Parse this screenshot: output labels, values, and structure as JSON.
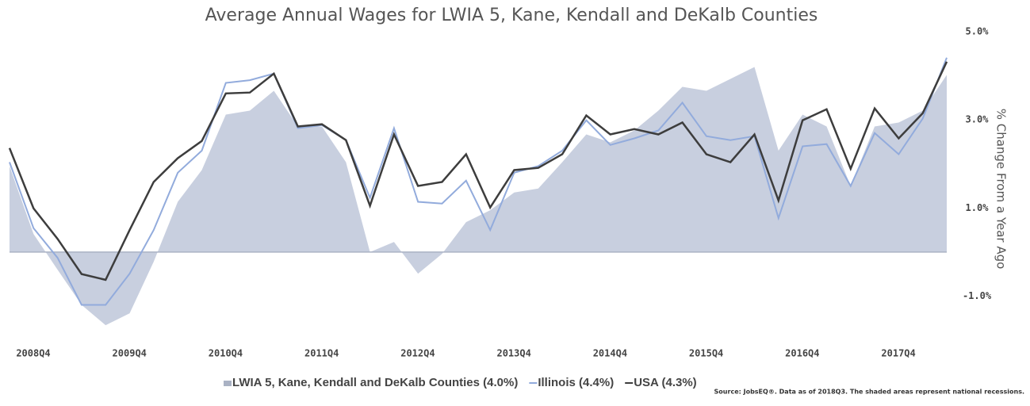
{
  "chart_data": {
    "type": "line",
    "title": "Average Annual Wages for LWIA 5, Kane, Kendall and DeKalb Counties",
    "y_label": "% Change From a Year Ago",
    "source": "Source: JobsEQ®. Data as of 2018Q3. The shaded areas represent national recessions.",
    "categories": [
      "2008Q4",
      null,
      null,
      null,
      "2009Q4",
      null,
      null,
      null,
      "2010Q4",
      null,
      null,
      null,
      "2011Q4",
      null,
      null,
      null,
      "2012Q4",
      null,
      null,
      null,
      "2013Q4",
      null,
      null,
      null,
      "2014Q4",
      null,
      null,
      null,
      "2015Q4",
      null,
      null,
      null,
      "2016Q4",
      null,
      null,
      null,
      "2017Q4",
      null,
      null,
      null
    ],
    "ylim": [
      -2,
      5
    ],
    "yticks": [
      {
        "value": 5,
        "label": "5.0%"
      },
      {
        "value": 3,
        "label": "3.0%"
      },
      {
        "value": 1,
        "label": "1.0%"
      },
      {
        "value": -1,
        "label": "-1.0%"
      }
    ],
    "series": [
      {
        "name": "LWIA 5, Kane, Kendall and DeKalb Counties (4.0%)",
        "kind": "area",
        "color": "#c8cfdf",
        "values": [
          1.95,
          0.41,
          -0.4,
          -1.2,
          -1.66,
          -1.39,
          -0.22,
          1.14,
          1.86,
          3.12,
          3.21,
          3.66,
          2.85,
          2.85,
          2.04,
          0,
          0.23,
          -0.49,
          -0.04,
          0.68,
          0.95,
          1.35,
          1.44,
          2.04,
          2.67,
          2.49,
          2.76,
          3.21,
          3.75,
          3.66,
          3.93,
          4.2,
          2.3,
          3.12,
          2.85,
          1.5,
          2.85,
          2.94,
          3.21,
          4.02
        ]
      },
      {
        "name": "Illinois (4.4%)",
        "kind": "line",
        "color": "#92abdc",
        "values": [
          2.04,
          0.54,
          -0.13,
          -1.2,
          -1.2,
          -0.49,
          0.5,
          1.8,
          2.3,
          3.84,
          3.9,
          4.05,
          2.81,
          2.88,
          2.54,
          1.23,
          2.81,
          1.14,
          1.1,
          1.62,
          0.5,
          1.8,
          1.95,
          2.3,
          2.99,
          2.43,
          2.58,
          2.76,
          3.39,
          2.63,
          2.54,
          2.63,
          0.77,
          2.4,
          2.45,
          1.5,
          2.7,
          2.22,
          3.03,
          4.41
        ]
      },
      {
        "name": "USA (4.3%)",
        "kind": "line",
        "color": "#3d3d3d",
        "values": [
          2.36,
          0.99,
          0.3,
          -0.5,
          -0.63,
          0.5,
          1.59,
          2.13,
          2.52,
          3.6,
          3.62,
          4.05,
          2.85,
          2.9,
          2.54,
          1.05,
          2.67,
          1.5,
          1.59,
          2.22,
          1.01,
          1.86,
          1.91,
          2.22,
          3.1,
          2.67,
          2.79,
          2.67,
          2.94,
          2.22,
          2.04,
          2.67,
          1.17,
          2.99,
          3.24,
          1.89,
          3.26,
          2.58,
          3.15,
          4.32
        ]
      }
    ]
  }
}
